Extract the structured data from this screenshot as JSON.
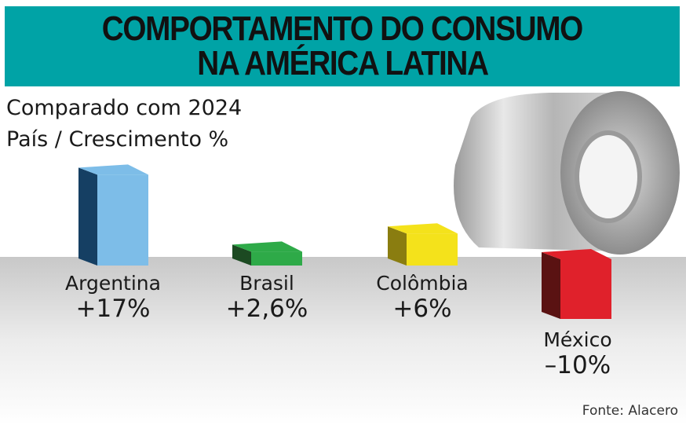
{
  "title": [
    "COMPORTAMENTO DO CONSUMO",
    "NA AMÉRICA LATINA"
  ],
  "subtitle": [
    "Comparado com 2024",
    "País / Crescimento %"
  ],
  "source": "Fonte: Alacero",
  "chart_data": {
    "type": "bar",
    "title": "COMPORTAMENTO DO CONSUMO NA AMÉRICA LATINA",
    "xlabel": "País",
    "ylabel": "Crescimento %",
    "categories": [
      "Argentina",
      "Brasil",
      "Colômbia",
      "México"
    ],
    "values": [
      17,
      2.6,
      6,
      -10
    ],
    "value_labels": [
      "+17%",
      "+2,6%",
      "+6%",
      "–10%"
    ],
    "colors": [
      "#7dbde8",
      "#2eaa48",
      "#f4e21b",
      "#e0212b"
    ],
    "side_colors": [
      "#153f63",
      "#1c4a22",
      "#8a7d10",
      "#5a1212"
    ]
  }
}
